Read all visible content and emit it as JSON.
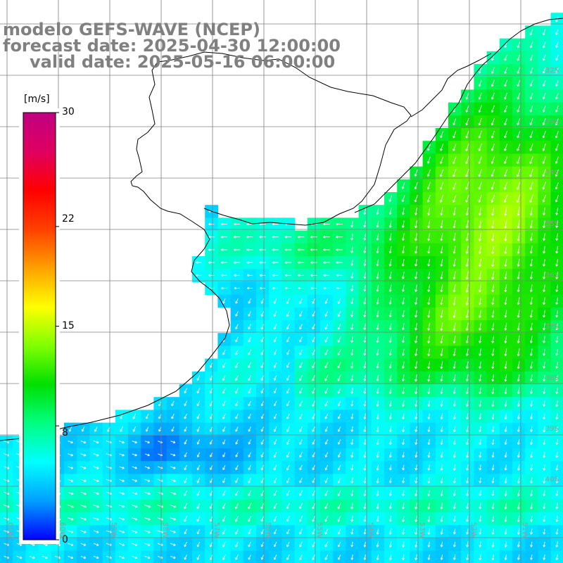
{
  "title": {
    "line1": "modelo GEFS-WAVE (NCEP)",
    "line2": "forecast date: 2025-04-30 12:00:00",
    "line3": "valid date: 2025-05-16 06:00:00"
  },
  "colorbar": {
    "unit": "[m/s]",
    "ticks": [
      "30",
      "22",
      "15",
      "8",
      "0"
    ],
    "tick_values": [
      30,
      22,
      15,
      8,
      0
    ],
    "vmin": 0,
    "vmax": 30,
    "colors": [
      "#0000ff",
      "#00a0ff",
      "#00ffff",
      "#00ff80",
      "#00e000",
      "#80ff00",
      "#ffff00",
      "#ffa000",
      "#ff4000",
      "#ff0000",
      "#e00060",
      "#c00080"
    ]
  },
  "grid": {
    "lat_labels": [
      "32S",
      "33S",
      "34S",
      "35S",
      "36S",
      "37S",
      "38S",
      "39S",
      "40S"
    ],
    "lon_labels": [
      "61W",
      "60W",
      "59W",
      "58W",
      "57W",
      "56W",
      "55W",
      "54W",
      "53W",
      "52W",
      "51W"
    ]
  },
  "wind_colors": {
    "land": "#ffffff",
    "coast": "#000000",
    "gridline": "#808080",
    "arrow": "#ffffff"
  }
}
